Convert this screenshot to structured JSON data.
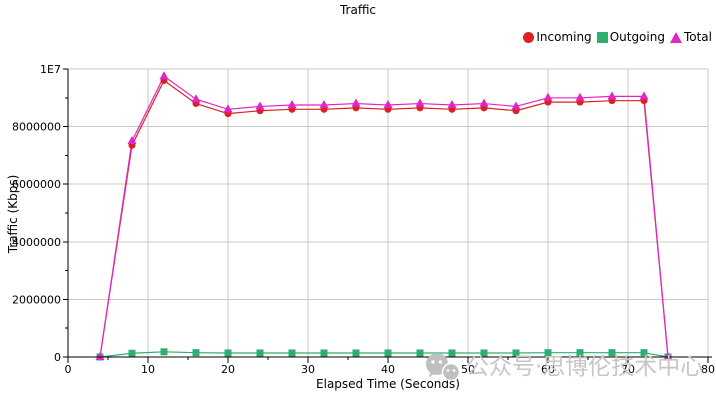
{
  "title": "Traffic",
  "watermark": {
    "icon": "wechat-icon",
    "text": "公众号·思博伦技术中心",
    "color": "#c6c6c6"
  },
  "chart_data": {
    "type": "line",
    "title": "Traffic",
    "xlabel": "Elapsed Time (Seconds)",
    "ylabel": "Traffic (Kbps)",
    "xlim": [
      0,
      80
    ],
    "ylim": [
      0,
      10000000
    ],
    "grid": true,
    "grid_color": "#c8c8c8",
    "axis_color": "#000000",
    "legend_position": "top-right",
    "x_major_ticks": [
      {
        "value": 0,
        "label": "0"
      },
      {
        "value": 10,
        "label": "10"
      },
      {
        "value": 20,
        "label": "20"
      },
      {
        "value": 30,
        "label": "30"
      },
      {
        "value": 40,
        "label": "40"
      },
      {
        "value": 50,
        "label": "50"
      },
      {
        "value": 60,
        "label": "60"
      },
      {
        "value": 70,
        "label": "70"
      },
      {
        "value": 80,
        "label": "80"
      }
    ],
    "x_minor_ticks": [
      5,
      15,
      25,
      35,
      45,
      55,
      65,
      75
    ],
    "y_major_ticks": [
      {
        "value": 0,
        "label": "0"
      },
      {
        "value": 2000000,
        "label": "2000000"
      },
      {
        "value": 4000000,
        "label": "4000000"
      },
      {
        "value": 6000000,
        "label": "6000000"
      },
      {
        "value": 8000000,
        "label": "8000000"
      },
      {
        "value": 10000000,
        "label": "1E7"
      }
    ],
    "y_minor_ticks": [
      1000000,
      3000000,
      5000000,
      7000000,
      9000000
    ],
    "x": [
      4,
      8,
      12,
      16,
      20,
      24,
      28,
      32,
      36,
      40,
      44,
      48,
      52,
      56,
      60,
      64,
      68,
      72,
      75
    ],
    "series": [
      {
        "name": "Incoming",
        "color": "#dd2020",
        "marker": "circle",
        "values": [
          0,
          7350000,
          9600000,
          8800000,
          8450000,
          8550000,
          8600000,
          8600000,
          8650000,
          8600000,
          8650000,
          8600000,
          8650000,
          8550000,
          8850000,
          8850000,
          8900000,
          8900000,
          0
        ]
      },
      {
        "name": "Outgoing",
        "color": "#2fae6e",
        "marker": "square",
        "values": [
          0,
          130000,
          180000,
          150000,
          140000,
          140000,
          140000,
          140000,
          140000,
          140000,
          140000,
          140000,
          140000,
          140000,
          150000,
          150000,
          150000,
          150000,
          0
        ]
      },
      {
        "name": "Total",
        "color": "#e126c6",
        "marker": "triangle",
        "values": [
          0,
          7500000,
          9750000,
          8950000,
          8600000,
          8700000,
          8750000,
          8750000,
          8800000,
          8750000,
          8800000,
          8750000,
          8800000,
          8700000,
          9000000,
          9000000,
          9050000,
          9050000,
          0
        ]
      }
    ]
  }
}
